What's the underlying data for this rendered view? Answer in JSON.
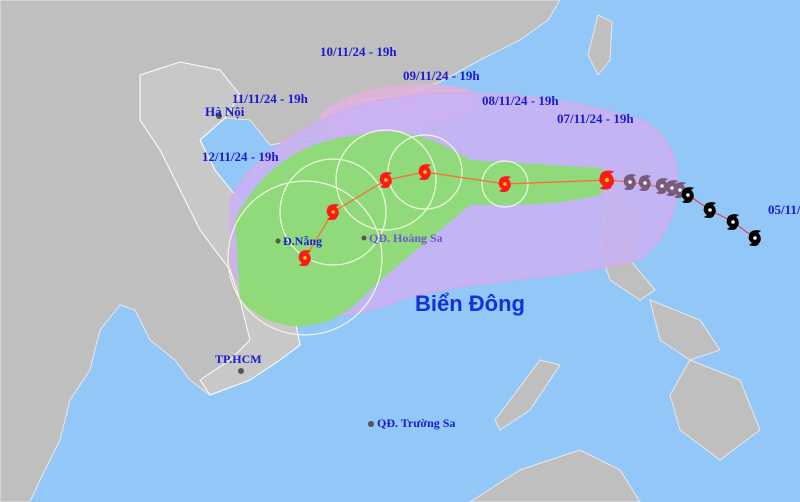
{
  "track_labels": {
    "t05": "05/11/",
    "t07": "07/11/24 - 19h",
    "t08": "08/11/24 - 19h",
    "t09": "09/11/24 - 19h",
    "t10": "10/11/24 - 19h",
    "t11": "11/11/24 - 19h",
    "t12": "12/11/24 - 19h"
  },
  "places": {
    "hanoi": "Hà Nội",
    "danang": "Đ.Nẵng",
    "hoangsa": "QĐ. Hoàng Sa",
    "tphcm": "TP.HCM",
    "truongsa": "QĐ. Trường Sa",
    "sea": "Biển Đông"
  },
  "colors": {
    "sea": "#93c7f7",
    "land": "#bfbfbf",
    "risk_zone": "#c9b3f2",
    "past_zone": "#e2b2dc",
    "wind_zone": "#8ddc74",
    "forecast_storm": "#ff1a1a",
    "past_storm_recent": "#7a5a7a",
    "past_storm_old": "#000000",
    "track_line": "#ff6a30"
  }
}
